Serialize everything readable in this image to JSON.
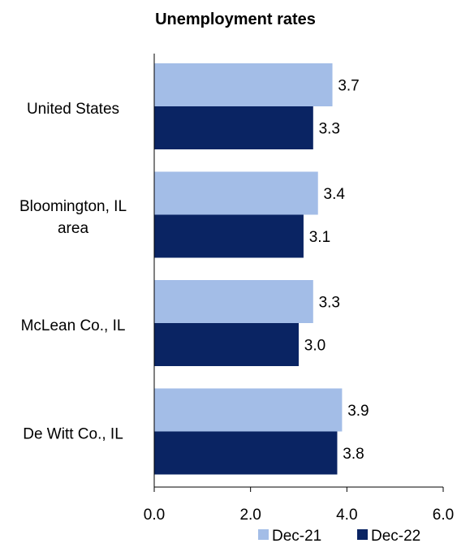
{
  "chart_data": {
    "type": "bar",
    "orientation": "horizontal",
    "title": "Unemployment rates",
    "categories": [
      [
        "United States"
      ],
      [
        "Bloomington, IL",
        "area"
      ],
      [
        "McLean Co., IL"
      ],
      [
        "De Witt Co., IL"
      ]
    ],
    "series": [
      {
        "name": "Dec-21",
        "color": "#a3bde7",
        "values": [
          3.7,
          3.4,
          3.3,
          3.9
        ]
      },
      {
        "name": "Dec-22",
        "color": "#0a2463",
        "values": [
          3.3,
          3.1,
          3.0,
          3.8
        ]
      }
    ],
    "xlim": [
      0,
      6
    ],
    "x_ticks": [
      "0.0",
      "2.0",
      "4.0",
      "6.0"
    ],
    "xlabel": "",
    "ylabel": "",
    "grid": false,
    "legend_position": "bottom-right",
    "data_labels": true
  }
}
